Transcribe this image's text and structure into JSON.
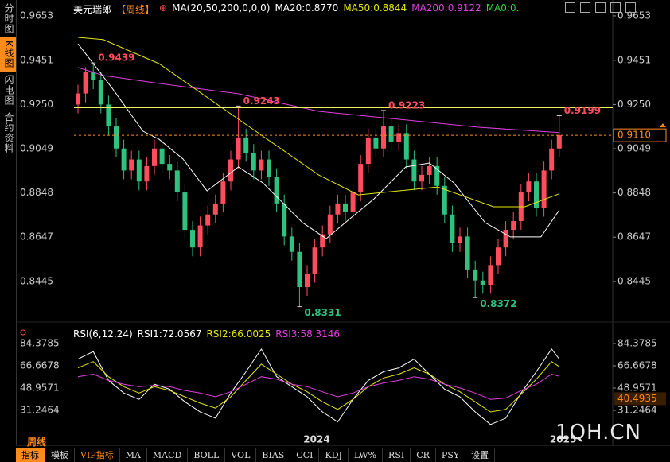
{
  "ui": {
    "sidebar": [
      {
        "text": "分时图",
        "active": false
      },
      {
        "text": "K线图",
        "active": true
      },
      {
        "text": "闪电图",
        "active": false
      },
      {
        "text": "合约资料",
        "active": false
      }
    ],
    "period_label": "周线",
    "tabs": [
      {
        "text": "指标",
        "active": true
      },
      {
        "text": "模板",
        "active": false
      },
      {
        "text": "VIP指标",
        "active": false,
        "color": "#ff8c1a"
      },
      {
        "text": "MA",
        "active": false
      },
      {
        "text": "MACD",
        "active": false
      },
      {
        "text": "BOLL",
        "active": false
      },
      {
        "text": "VOL",
        "active": false
      },
      {
        "text": "BIAS",
        "active": false
      },
      {
        "text": "CCI",
        "active": false
      },
      {
        "text": "KDJ",
        "active": false
      },
      {
        "text": "LW%",
        "active": false
      },
      {
        "text": "RSI",
        "active": false
      },
      {
        "text": "CR",
        "active": false
      },
      {
        "text": "PSY",
        "active": false
      },
      {
        "text": "设置",
        "active": false
      }
    ],
    "watermark": "1QH.CN"
  },
  "chart_data": [
    {
      "type": "candlestick",
      "header": [
        {
          "text": "美元瑞郎",
          "color": "#ffffff"
        },
        {
          "text": "【周线】",
          "color": "#ff8c1a"
        },
        {
          "text": "⊕",
          "color": "#ff5050"
        },
        {
          "text": "MA(20,50,200,0,0,0)",
          "color": "#ffffff"
        },
        {
          "text": "MA20:0.8770",
          "color": "#ffffff"
        },
        {
          "text": "MA50:0.8844",
          "color": "#e6e600"
        },
        {
          "text": "MA200:0.9122",
          "color": "#e040e0"
        },
        {
          "text": "MA0:0.",
          "color": "#30d040"
        }
      ],
      "up_color": "#ff4d5e",
      "down_color": "#2ec27e",
      "ylim": [
        0.8279,
        0.9707
      ],
      "yticks": [
        0.9653,
        0.9451,
        {
          "value": 0.925,
          "label": "0.9250"
        },
        0.9049,
        0.8848,
        0.8647,
        0.8445
      ],
      "ohlc": [
        [
          0.925,
          0.934,
          0.921,
          0.93
        ],
        [
          0.93,
          0.942,
          0.926,
          0.94
        ],
        [
          0.94,
          0.9439,
          0.932,
          0.936
        ],
        [
          0.936,
          0.94,
          0.921,
          0.925
        ],
        [
          0.925,
          0.929,
          0.911,
          0.915
        ],
        [
          0.915,
          0.919,
          0.901,
          0.905
        ],
        [
          0.905,
          0.909,
          0.891,
          0.895
        ],
        [
          0.895,
          0.904,
          0.891,
          0.9
        ],
        [
          0.9,
          0.904,
          0.886,
          0.89
        ],
        [
          0.89,
          0.901,
          0.886,
          0.897
        ],
        [
          0.897,
          0.909,
          0.893,
          0.905
        ],
        [
          0.905,
          0.909,
          0.894,
          0.898
        ],
        [
          0.898,
          0.902,
          0.891,
          0.895
        ],
        [
          0.895,
          0.899,
          0.881,
          0.885
        ],
        [
          0.885,
          0.889,
          0.864,
          0.868
        ],
        [
          0.868,
          0.872,
          0.856,
          0.86
        ],
        [
          0.86,
          0.874,
          0.856,
          0.87
        ],
        [
          0.87,
          0.879,
          0.866,
          0.875
        ],
        [
          0.875,
          0.884,
          0.871,
          0.88
        ],
        [
          0.88,
          0.894,
          0.876,
          0.89
        ],
        [
          0.89,
          0.904,
          0.886,
          0.9
        ],
        [
          0.9,
          0.9243,
          0.896,
          0.91
        ],
        [
          0.91,
          0.914,
          0.899,
          0.903
        ],
        [
          0.903,
          0.907,
          0.891,
          0.895
        ],
        [
          0.895,
          0.904,
          0.891,
          0.9
        ],
        [
          0.9,
          0.904,
          0.888,
          0.892
        ],
        [
          0.892,
          0.896,
          0.876,
          0.88
        ],
        [
          0.88,
          0.884,
          0.861,
          0.865
        ],
        [
          0.865,
          0.869,
          0.854,
          0.858
        ],
        [
          0.858,
          0.862,
          0.8331,
          0.842
        ],
        [
          0.842,
          0.852,
          0.838,
          0.848
        ],
        [
          0.848,
          0.864,
          0.844,
          0.86
        ],
        [
          0.86,
          0.87,
          0.856,
          0.866
        ],
        [
          0.866,
          0.879,
          0.862,
          0.875
        ],
        [
          0.875,
          0.884,
          0.871,
          0.88
        ],
        [
          0.88,
          0.884,
          0.872,
          0.876
        ],
        [
          0.876,
          0.889,
          0.872,
          0.885
        ],
        [
          0.885,
          0.902,
          0.881,
          0.898
        ],
        [
          0.898,
          0.914,
          0.894,
          0.91
        ],
        [
          0.91,
          0.914,
          0.901,
          0.905
        ],
        [
          0.905,
          0.9223,
          0.901,
          0.915
        ],
        [
          0.915,
          0.919,
          0.904,
          0.908
        ],
        [
          0.908,
          0.916,
          0.904,
          0.912
        ],
        [
          0.912,
          0.916,
          0.896,
          0.9
        ],
        [
          0.9,
          0.904,
          0.886,
          0.89
        ],
        [
          0.89,
          0.897,
          0.886,
          0.893
        ],
        [
          0.893,
          0.901,
          0.889,
          0.897
        ],
        [
          0.897,
          0.901,
          0.884,
          0.888
        ],
        [
          0.888,
          0.892,
          0.871,
          0.875
        ],
        [
          0.875,
          0.879,
          0.858,
          0.862
        ],
        [
          0.862,
          0.869,
          0.858,
          0.865
        ],
        [
          0.865,
          0.869,
          0.846,
          0.85
        ],
        [
          0.85,
          0.854,
          0.8372,
          0.845
        ],
        [
          0.845,
          0.849,
          0.839,
          0.843
        ],
        [
          0.843,
          0.856,
          0.839,
          0.852
        ],
        [
          0.852,
          0.864,
          0.848,
          0.86
        ],
        [
          0.86,
          0.872,
          0.856,
          0.868
        ],
        [
          0.868,
          0.876,
          0.864,
          0.872
        ],
        [
          0.872,
          0.889,
          0.868,
          0.885
        ],
        [
          0.885,
          0.894,
          0.881,
          0.89
        ],
        [
          0.89,
          0.894,
          0.874,
          0.878
        ],
        [
          0.878,
          0.899,
          0.874,
          0.895
        ],
        [
          0.895,
          0.909,
          0.891,
          0.905
        ],
        [
          0.905,
          0.9199,
          0.901,
          0.911
        ]
      ],
      "series": [
        {
          "color": "#e040e0",
          "x": [
            0,
            3.3,
            10.6,
            21,
            31.5,
            41.9,
            52.3,
            63
          ],
          "values": [
            0.9418,
            0.9382,
            0.9346,
            0.9299,
            0.9219,
            0.9183,
            0.9147,
            0.9122
          ]
        },
        {
          "color": "#e6e600",
          "x": [
            0,
            3.3,
            10.6,
            21,
            31.5,
            36.7,
            41.9,
            47.1,
            54.4,
            58.5,
            63
          ],
          "values": [
            0.9555,
            0.9545,
            0.9436,
            0.9183,
            0.893,
            0.8839,
            0.8857,
            0.8875,
            0.8785,
            0.8785,
            0.8844
          ]
        },
        {
          "color": "#ffffff",
          "x": [
            0,
            4.4,
            8.5,
            10.6,
            13.75,
            16.9,
            21,
            24.2,
            29.4,
            32.5,
            35.6,
            38.75,
            42.9,
            46,
            49.2,
            53.3,
            56.6,
            60.6,
            63
          ],
          "values": [
            0.9526,
            0.9328,
            0.9129,
            0.9092,
            0.9002,
            0.8857,
            0.8966,
            0.8894,
            0.8713,
            0.864,
            0.8731,
            0.8821,
            0.8966,
            0.8984,
            0.8894,
            0.8713,
            0.8648,
            0.8648,
            0.877
          ]
        }
      ],
      "hline": {
        "value": 0.9236,
        "color": "#f0f060"
      },
      "current": {
        "value": 0.911,
        "label": "0.9110",
        "color": "#ff8c1a"
      },
      "annotations": [
        {
          "label": "0.9439",
          "value": 0.9439,
          "x": 2,
          "pos": "high"
        },
        {
          "label": "0.9243",
          "value": 0.9243,
          "x": 21,
          "pos": "high"
        },
        {
          "label": "0.9223",
          "value": 0.9223,
          "x": 40,
          "pos": "high"
        },
        {
          "label": "0.9199",
          "value": 0.9199,
          "x": 63,
          "pos": "high"
        },
        {
          "label": "0.8331",
          "value": 0.8331,
          "x": 29,
          "pos": "low"
        },
        {
          "label": "0.8372",
          "value": 0.8372,
          "x": 52,
          "pos": "low"
        }
      ]
    },
    {
      "type": "line",
      "header": [
        {
          "text": "RSI(6,12,24)",
          "color": "#ffffff"
        },
        {
          "text": "RSI1:72.0567",
          "color": "#ffffff"
        },
        {
          "text": "RSI2:66.0025",
          "color": "#e6e600"
        },
        {
          "text": "RSI3:58.3146",
          "color": "#e040e0"
        }
      ],
      "ylim": [
        12.9,
        91.97
      ],
      "yticks": [
        84.3785,
        66.6678,
        48.9571,
        31.2464
      ],
      "xticks": [
        {
          "value": 31.25,
          "label": "2024"
        },
        {
          "value": 63.5,
          "label": "2025"
        }
      ],
      "current": 40.4935,
      "series": [
        {
          "color": "#ffffff",
          "x": [
            0,
            2,
            4,
            6,
            8,
            10,
            12,
            14,
            16,
            18,
            20,
            22,
            24,
            26,
            28,
            30,
            32,
            34,
            36,
            38,
            40,
            42,
            44,
            46,
            48,
            50,
            52,
            54,
            56,
            58,
            60,
            62,
            63
          ],
          "values": [
            72,
            78,
            55,
            45,
            40,
            52,
            48,
            38,
            30,
            25,
            45,
            62,
            80,
            58,
            50,
            42,
            30,
            22,
            40,
            55,
            62,
            65,
            72,
            60,
            48,
            42,
            30,
            20,
            25,
            45,
            62,
            80,
            72.0567
          ]
        },
        {
          "color": "#e6e600",
          "x": [
            0,
            2,
            4,
            6,
            8,
            10,
            12,
            14,
            16,
            18,
            20,
            22,
            24,
            26,
            28,
            30,
            32,
            34,
            36,
            38,
            40,
            42,
            44,
            46,
            48,
            50,
            52,
            54,
            56,
            58,
            60,
            62,
            63
          ],
          "values": [
            65,
            70,
            58,
            50,
            45,
            50,
            47,
            42,
            37,
            33,
            42,
            55,
            68,
            60,
            52,
            46,
            38,
            32,
            40,
            50,
            57,
            60,
            65,
            60,
            52,
            46,
            38,
            30,
            32,
            44,
            56,
            70,
            66.0025
          ]
        },
        {
          "color": "#e040e0",
          "x": [
            0,
            2,
            4,
            6,
            8,
            10,
            12,
            14,
            16,
            18,
            20,
            22,
            24,
            26,
            28,
            30,
            32,
            34,
            36,
            38,
            40,
            42,
            44,
            46,
            48,
            50,
            52,
            54,
            56,
            58,
            60,
            62,
            63
          ],
          "values": [
            58,
            60,
            55,
            52,
            50,
            51,
            50,
            47,
            45,
            42,
            46,
            52,
            58,
            56,
            52,
            50,
            46,
            42,
            45,
            50,
            53,
            55,
            58,
            56,
            52,
            49,
            45,
            40,
            41,
            47,
            52,
            60,
            58.3146
          ]
        }
      ]
    }
  ]
}
